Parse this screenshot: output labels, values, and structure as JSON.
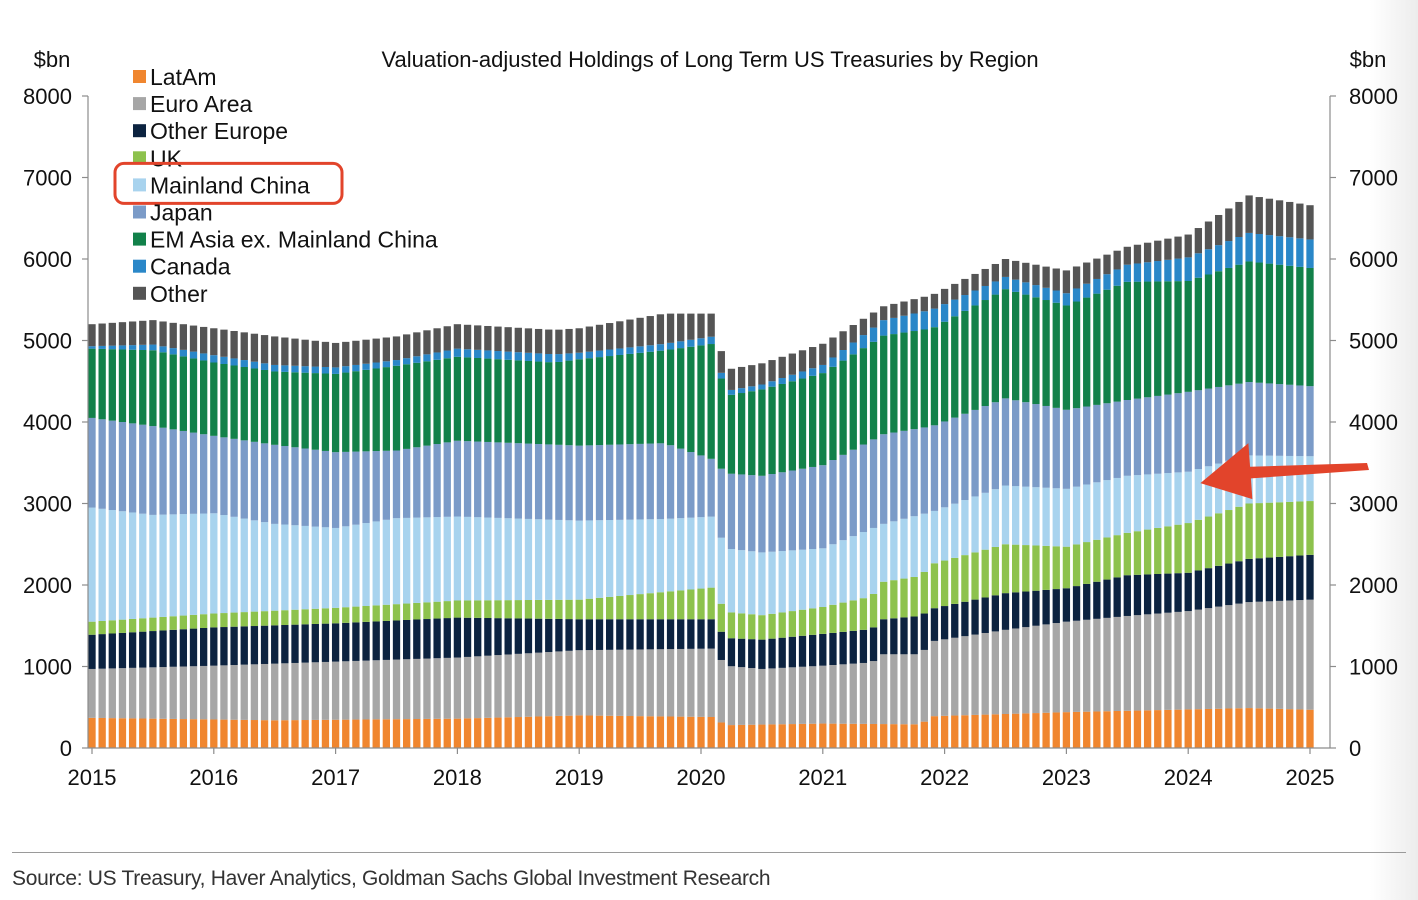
{
  "chart_data": {
    "type": "bar",
    "stacked": true,
    "title": "Valuation-adjusted Holdings of Long Term US Treasuries by Region",
    "ylabel_left": "$bn",
    "ylabel_right": "$bn",
    "ylim": [
      0,
      8000
    ],
    "yticks": [
      0,
      1000,
      2000,
      3000,
      4000,
      5000,
      6000,
      7000,
      8000
    ],
    "xlim": [
      2015,
      2025
    ],
    "xticks": [
      "2015",
      "2016",
      "2017",
      "2018",
      "2019",
      "2020",
      "2021",
      "2022",
      "2023",
      "2024",
      "2025"
    ],
    "frequency": "monthly",
    "series_anchor_note": "Each series: cumulative upper boundary (in $bn) at the listed dates; monthly values between anchors follow linearly.",
    "boundaries": [
      {
        "name": "LatAm",
        "color": "#f0862f",
        "anchors": [
          [
            2015.0,
            370
          ],
          [
            2016.5,
            340
          ],
          [
            2018.0,
            360
          ],
          [
            2019.0,
            400
          ],
          [
            2020.1,
            380
          ],
          [
            2020.2,
            280
          ],
          [
            2021.0,
            300
          ],
          [
            2021.8,
            290
          ],
          [
            2021.9,
            390
          ],
          [
            2023.0,
            440
          ],
          [
            2024.5,
            490
          ],
          [
            2025.0,
            470
          ]
        ]
      },
      {
        "name": "Euro Area",
        "color": "#a6a6a6",
        "anchors": [
          [
            2015.0,
            970
          ],
          [
            2016.0,
            1010
          ],
          [
            2017.0,
            1060
          ],
          [
            2018.0,
            1110
          ],
          [
            2019.0,
            1200
          ],
          [
            2020.1,
            1220
          ],
          [
            2020.2,
            1010
          ],
          [
            2020.5,
            970
          ],
          [
            2021.0,
            1010
          ],
          [
            2021.4,
            1050
          ],
          [
            2021.5,
            1150
          ],
          [
            2021.8,
            1150
          ],
          [
            2021.9,
            1310
          ],
          [
            2022.5,
            1450
          ],
          [
            2023.0,
            1550
          ],
          [
            2023.5,
            1620
          ],
          [
            2024.0,
            1680
          ],
          [
            2024.5,
            1790
          ],
          [
            2025.0,
            1820
          ]
        ]
      },
      {
        "name": "Other Europe",
        "color": "#0c2340",
        "anchors": [
          [
            2015.0,
            1390
          ],
          [
            2016.0,
            1480
          ],
          [
            2017.0,
            1530
          ],
          [
            2018.0,
            1600
          ],
          [
            2019.0,
            1580
          ],
          [
            2020.1,
            1580
          ],
          [
            2020.2,
            1350
          ],
          [
            2020.5,
            1330
          ],
          [
            2021.0,
            1400
          ],
          [
            2021.4,
            1460
          ],
          [
            2021.5,
            1580
          ],
          [
            2021.8,
            1620
          ],
          [
            2021.9,
            1710
          ],
          [
            2022.5,
            1900
          ],
          [
            2023.0,
            1960
          ],
          [
            2023.5,
            2120
          ],
          [
            2024.0,
            2150
          ],
          [
            2024.5,
            2320
          ],
          [
            2025.0,
            2370
          ]
        ]
      },
      {
        "name": "UK",
        "color": "#8dc24d",
        "anchors": [
          [
            2015.0,
            1550
          ],
          [
            2016.0,
            1650
          ],
          [
            2017.0,
            1720
          ],
          [
            2018.0,
            1810
          ],
          [
            2019.0,
            1820
          ],
          [
            2020.1,
            1970
          ],
          [
            2020.2,
            1670
          ],
          [
            2020.5,
            1630
          ],
          [
            2021.0,
            1730
          ],
          [
            2021.4,
            1860
          ],
          [
            2021.5,
            2040
          ],
          [
            2021.8,
            2110
          ],
          [
            2021.9,
            2260
          ],
          [
            2022.5,
            2500
          ],
          [
            2023.0,
            2470
          ],
          [
            2023.5,
            2640
          ],
          [
            2024.0,
            2760
          ],
          [
            2024.5,
            3000
          ],
          [
            2025.0,
            3030
          ]
        ]
      },
      {
        "name": "Mainland China",
        "color": "#a8d3ee",
        "anchors": [
          [
            2015.0,
            2950
          ],
          [
            2015.5,
            2860
          ],
          [
            2016.0,
            2880
          ],
          [
            2016.5,
            2750
          ],
          [
            2017.0,
            2700
          ],
          [
            2017.5,
            2820
          ],
          [
            2018.0,
            2840
          ],
          [
            2019.0,
            2790
          ],
          [
            2019.7,
            2810
          ],
          [
            2020.1,
            2840
          ],
          [
            2020.2,
            2450
          ],
          [
            2020.5,
            2400
          ],
          [
            2021.0,
            2450
          ],
          [
            2021.5,
            2750
          ],
          [
            2021.9,
            2900
          ],
          [
            2022.5,
            3220
          ],
          [
            2023.0,
            3180
          ],
          [
            2023.5,
            3340
          ],
          [
            2024.0,
            3390
          ],
          [
            2024.5,
            3590
          ],
          [
            2025.0,
            3580
          ]
        ]
      },
      {
        "name": "Japan",
        "color": "#7b9bc8",
        "anchors": [
          [
            2015.0,
            4050
          ],
          [
            2015.5,
            3950
          ],
          [
            2016.0,
            3830
          ],
          [
            2016.5,
            3720
          ],
          [
            2017.0,
            3630
          ],
          [
            2017.5,
            3650
          ],
          [
            2018.0,
            3770
          ],
          [
            2019.0,
            3710
          ],
          [
            2019.7,
            3740
          ],
          [
            2020.1,
            3540
          ],
          [
            2020.2,
            3370
          ],
          [
            2020.5,
            3340
          ],
          [
            2021.0,
            3470
          ],
          [
            2021.5,
            3850
          ],
          [
            2021.9,
            3950
          ],
          [
            2022.5,
            4290
          ],
          [
            2023.0,
            4150
          ],
          [
            2023.5,
            4270
          ],
          [
            2024.0,
            4370
          ],
          [
            2024.5,
            4490
          ],
          [
            2025.0,
            4440
          ]
        ]
      },
      {
        "name": "EM Asia ex. Mainland China",
        "color": "#12814a",
        "anchors": [
          [
            2015.0,
            4900
          ],
          [
            2015.5,
            4880
          ],
          [
            2016.0,
            4730
          ],
          [
            2016.5,
            4620
          ],
          [
            2017.0,
            4590
          ],
          [
            2017.5,
            4690
          ],
          [
            2018.0,
            4800
          ],
          [
            2018.8,
            4730
          ],
          [
            2019.0,
            4770
          ],
          [
            2019.7,
            4880
          ],
          [
            2020.1,
            4960
          ],
          [
            2020.2,
            4320
          ],
          [
            2020.5,
            4400
          ],
          [
            2021.0,
            4600
          ],
          [
            2021.5,
            5060
          ],
          [
            2021.9,
            5150
          ],
          [
            2022.5,
            5630
          ],
          [
            2023.0,
            5430
          ],
          [
            2023.5,
            5720
          ],
          [
            2024.0,
            5730
          ],
          [
            2024.5,
            5970
          ],
          [
            2025.0,
            5890
          ]
        ]
      },
      {
        "name": "Canada",
        "color": "#2a87c8",
        "anchors": [
          [
            2015.0,
            4930
          ],
          [
            2015.5,
            4950
          ],
          [
            2016.0,
            4820
          ],
          [
            2016.5,
            4700
          ],
          [
            2017.0,
            4670
          ],
          [
            2017.5,
            4760
          ],
          [
            2018.0,
            4900
          ],
          [
            2018.8,
            4830
          ],
          [
            2019.0,
            4850
          ],
          [
            2019.7,
            4960
          ],
          [
            2020.1,
            5050
          ],
          [
            2020.2,
            4380
          ],
          [
            2020.5,
            4460
          ],
          [
            2021.0,
            4700
          ],
          [
            2021.5,
            5250
          ],
          [
            2021.9,
            5380
          ],
          [
            2022.5,
            5780
          ],
          [
            2023.0,
            5580
          ],
          [
            2023.5,
            5930
          ],
          [
            2024.0,
            6020
          ],
          [
            2024.5,
            6320
          ],
          [
            2025.0,
            6240
          ]
        ]
      },
      {
        "name": "Other",
        "color": "#555555",
        "anchors": [
          [
            2015.0,
            5200
          ],
          [
            2015.5,
            5250
          ],
          [
            2016.0,
            5150
          ],
          [
            2016.5,
            5050
          ],
          [
            2017.0,
            4970
          ],
          [
            2017.5,
            5050
          ],
          [
            2018.0,
            5200
          ],
          [
            2018.8,
            5130
          ],
          [
            2019.0,
            5150
          ],
          [
            2019.7,
            5330
          ],
          [
            2020.1,
            5330
          ],
          [
            2020.2,
            4640
          ],
          [
            2020.5,
            4720
          ],
          [
            2021.0,
            4960
          ],
          [
            2021.5,
            5420
          ],
          [
            2021.9,
            5560
          ],
          [
            2022.5,
            6000
          ],
          [
            2023.0,
            5860
          ],
          [
            2023.5,
            6150
          ],
          [
            2024.0,
            6300
          ],
          [
            2024.5,
            6780
          ],
          [
            2025.0,
            6660
          ]
        ]
      }
    ]
  },
  "legend": {
    "items": [
      {
        "label": "LatAm",
        "color": "#f0862f"
      },
      {
        "label": "Euro Area",
        "color": "#a6a6a6"
      },
      {
        "label": "Other Europe",
        "color": "#0c2340"
      },
      {
        "label": "UK",
        "color": "#8dc24d"
      },
      {
        "label": "Mainland China",
        "color": "#a8d3ee"
      },
      {
        "label": "Japan",
        "color": "#7b9bc8"
      },
      {
        "label": "EM Asia ex. Mainland China",
        "color": "#12814a"
      },
      {
        "label": "Canada",
        "color": "#2a87c8"
      },
      {
        "label": "Other",
        "color": "#555555"
      }
    ],
    "highlighted": "Mainland China",
    "highlight_color": "#e2442b"
  },
  "annotation": {
    "arrow_color": "#e2442b",
    "arrow_points_to": "Mainland China",
    "arrow_target": [
      2024.1,
      3250
    ]
  },
  "source": "Source: US Treasury, Haver Analytics, Goldman Sachs Global Investment Research"
}
